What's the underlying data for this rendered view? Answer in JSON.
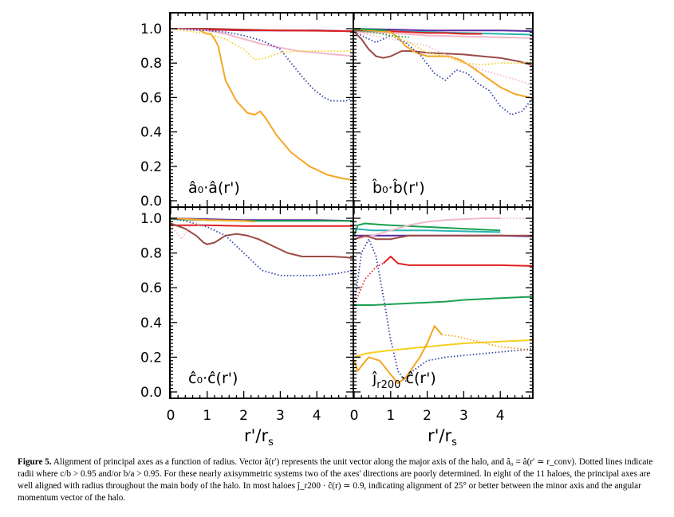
{
  "chart_data": [
    {
      "type": "line",
      "panel": "top-left",
      "label": "â₀·â(r')",
      "xlim": [
        0,
        5
      ],
      "ylim": [
        0,
        1.05
      ],
      "series": [
        {
          "color": "#f5a623",
          "style": "solid",
          "x": [
            0,
            0.5,
            0.8,
            0.9,
            1.0,
            1.1,
            1.2,
            1.3,
            1.5,
            1.8,
            2.1,
            2.3,
            2.45,
            2.6,
            2.9,
            3.3,
            3.8,
            4.3,
            4.7,
            5.0
          ],
          "y": [
            1.0,
            1.0,
            0.99,
            0.98,
            0.97,
            0.97,
            0.94,
            0.9,
            0.7,
            0.58,
            0.51,
            0.5,
            0.52,
            0.48,
            0.38,
            0.28,
            0.2,
            0.15,
            0.13,
            0.12
          ]
        },
        {
          "color": "#9b4a45",
          "style": "solid",
          "x": [
            0,
            1,
            2,
            3,
            4,
            5
          ],
          "y": [
            1.0,
            1.0,
            0.995,
            0.99,
            0.99,
            0.985
          ]
        },
        {
          "color": "#5a2aa0",
          "style": "solid",
          "x": [
            0,
            1,
            2,
            3,
            4,
            5
          ],
          "y": [
            1.0,
            0.995,
            0.99,
            0.99,
            0.99,
            0.985
          ]
        },
        {
          "color": "#e02020",
          "style": "solid",
          "x": [
            0,
            1,
            2,
            3,
            4,
            5
          ],
          "y": [
            1.0,
            0.995,
            0.992,
            0.99,
            0.988,
            0.985
          ]
        },
        {
          "color": "#f2b8c9",
          "style": "solid",
          "x": [
            0,
            1,
            1.5,
            2,
            2.5,
            3,
            3.5,
            4,
            4.5,
            5
          ],
          "y": [
            1.0,
            0.99,
            0.97,
            0.94,
            0.91,
            0.89,
            0.87,
            0.86,
            0.85,
            0.84
          ]
        },
        {
          "color": "#3344aa",
          "style": "dotted",
          "x": [
            0,
            1,
            1.5,
            2,
            2.5,
            3,
            3.3,
            3.6,
            3.9,
            4.2,
            4.4,
            4.6,
            4.8,
            5.0
          ],
          "y": [
            1.0,
            0.99,
            0.98,
            0.96,
            0.93,
            0.88,
            0.8,
            0.72,
            0.65,
            0.6,
            0.58,
            0.58,
            0.58,
            0.6
          ]
        },
        {
          "color": "#f5d020",
          "style": "dotted",
          "x": [
            0,
            1,
            1.5,
            2.0,
            2.3,
            2.6,
            3.0,
            3.5,
            4.0,
            4.5,
            5.0
          ],
          "y": [
            1.0,
            0.97,
            0.94,
            0.88,
            0.82,
            0.83,
            0.86,
            0.87,
            0.87,
            0.87,
            0.87
          ]
        }
      ]
    },
    {
      "type": "line",
      "panel": "top-right",
      "label": "b̂₀·b̂(r')",
      "xlim": [
        0,
        5
      ],
      "ylim": [
        0,
        1.05
      ],
      "series": [
        {
          "color": "#5a2aa0",
          "style": "solid",
          "x": [
            0,
            1,
            2,
            3,
            4,
            5
          ],
          "y": [
            1.0,
            0.995,
            0.99,
            0.99,
            0.99,
            0.985
          ]
        },
        {
          "color": "#28b4b4",
          "style": "solid",
          "x": [
            0,
            1,
            2,
            3,
            4,
            5
          ],
          "y": [
            0.99,
            0.985,
            0.98,
            0.975,
            0.97,
            0.965
          ]
        },
        {
          "color": "#e02020",
          "style": "solid",
          "x": [
            0,
            0.5,
            1,
            1.5,
            2,
            2.5,
            3,
            3.5
          ],
          "y": [
            0.99,
            0.99,
            0.985,
            0.98,
            0.975,
            0.975,
            0.97,
            0.97
          ]
        },
        {
          "color": "#f2b8c9",
          "style": "solid",
          "x": [
            0,
            1,
            2,
            3,
            4,
            5
          ],
          "y": [
            0.98,
            0.975,
            0.96,
            0.955,
            0.95,
            0.945
          ]
        },
        {
          "color": "#9b4a45",
          "style": "solid",
          "x": [
            0,
            0.2,
            0.4,
            0.6,
            0.8,
            1.0,
            1.3,
            1.6,
            2.0,
            2.5,
            3.0,
            3.5,
            4.0,
            4.5,
            5.0
          ],
          "y": [
            0.98,
            0.94,
            0.88,
            0.84,
            0.83,
            0.84,
            0.87,
            0.87,
            0.86,
            0.855,
            0.85,
            0.84,
            0.83,
            0.81,
            0.78
          ]
        },
        {
          "color": "#f5a623",
          "style": "solid",
          "x": [
            0,
            1.0,
            1.2,
            1.4,
            1.7,
            2.0,
            2.3,
            2.6,
            2.9,
            3.2,
            3.6,
            4.0,
            4.4,
            4.8,
            5.0
          ],
          "y": [
            1.0,
            0.98,
            0.95,
            0.9,
            0.86,
            0.84,
            0.84,
            0.84,
            0.82,
            0.78,
            0.72,
            0.66,
            0.62,
            0.6,
            0.58
          ]
        },
        {
          "color": "#3344aa",
          "style": "dotted",
          "x": [
            0,
            0.3,
            0.6,
            1.0,
            1.4,
            1.8,
            2.2,
            2.5,
            2.8,
            3.1,
            3.4,
            3.7,
            4.0,
            4.3,
            4.6,
            4.9,
            5.0
          ],
          "y": [
            0.98,
            0.95,
            0.92,
            0.96,
            0.92,
            0.85,
            0.74,
            0.7,
            0.76,
            0.74,
            0.68,
            0.64,
            0.55,
            0.5,
            0.52,
            0.6,
            0.66
          ]
        },
        {
          "color": "#f5d020",
          "style": "dotted",
          "x": [
            0,
            1,
            1.5,
            2.0,
            2.3,
            2.6,
            3.0,
            3.5,
            4.0,
            4.5,
            5.0
          ],
          "y": [
            1.0,
            0.96,
            0.92,
            0.86,
            0.85,
            0.83,
            0.8,
            0.79,
            0.8,
            0.8,
            0.81
          ]
        },
        {
          "color": "#f2b8c9",
          "style": "dotted",
          "x": [
            0,
            1,
            2,
            3,
            3.5,
            4,
            4.5,
            5.0
          ],
          "y": [
            0.98,
            0.94,
            0.9,
            0.8,
            0.76,
            0.73,
            0.7,
            0.66
          ]
        },
        {
          "color": "#1aa050",
          "style": "dotted",
          "x": [
            0,
            0.5,
            1.0,
            1.5
          ],
          "y": [
            0.99,
            0.98,
            0.96,
            0.95
          ]
        },
        {
          "color": "#1aa050",
          "style": "solid",
          "x": [
            0,
            0.5,
            0.9
          ],
          "y": [
            1.0,
            0.995,
            0.99
          ]
        }
      ]
    },
    {
      "type": "line",
      "panel": "bottom-left",
      "label": "ĉ₀·ĉ(r')",
      "xlim": [
        0,
        5
      ],
      "ylim": [
        0,
        1.05
      ],
      "series": [
        {
          "color": "#5a2aa0",
          "style": "solid",
          "x": [
            0,
            1,
            2,
            3,
            4,
            5
          ],
          "y": [
            1.0,
            0.995,
            0.99,
            0.99,
            0.99,
            0.985
          ]
        },
        {
          "color": "#1aa050",
          "style": "solid",
          "x": [
            0,
            1,
            2,
            3,
            4,
            5
          ],
          "y": [
            0.995,
            0.99,
            0.985,
            0.985,
            0.985,
            0.985
          ]
        },
        {
          "color": "#f5a623",
          "style": "solid",
          "x": [
            0,
            1,
            2,
            2.3
          ],
          "y": [
            1.0,
            0.99,
            0.985,
            0.98
          ]
        },
        {
          "color": "#e02020",
          "style": "solid",
          "x": [
            0,
            1,
            2,
            3,
            4,
            5
          ],
          "y": [
            0.96,
            0.96,
            0.955,
            0.955,
            0.955,
            0.955
          ]
        },
        {
          "color": "#9b4a45",
          "style": "solid",
          "x": [
            0,
            0.4,
            0.7,
            0.9,
            1.0,
            1.2,
            1.5,
            1.8,
            2.1,
            2.4,
            2.8,
            3.2,
            3.6,
            4.0,
            4.4,
            4.8,
            5.0
          ],
          "y": [
            0.97,
            0.94,
            0.9,
            0.86,
            0.85,
            0.86,
            0.9,
            0.91,
            0.9,
            0.88,
            0.84,
            0.8,
            0.78,
            0.78,
            0.78,
            0.775,
            0.77
          ]
        },
        {
          "color": "#3344aa",
          "style": "dotted",
          "x": [
            0,
            0.5,
            1.0,
            1.5,
            2.0,
            2.5,
            3.0,
            3.5,
            4.0,
            4.5,
            5.0
          ],
          "y": [
            1.0,
            0.98,
            0.95,
            0.9,
            0.8,
            0.7,
            0.67,
            0.67,
            0.67,
            0.68,
            0.7
          ]
        },
        {
          "color": "#f2b8c9",
          "style": "dotted",
          "x": [
            0,
            0.3,
            0.6,
            0.9
          ],
          "y": [
            0.96,
            0.88,
            0.98,
            0.95
          ]
        }
      ]
    },
    {
      "type": "line",
      "panel": "bottom-right",
      "label": "ĵr200·ĉ(r')",
      "xlim": [
        0,
        5
      ],
      "ylim": [
        0,
        1.05
      ],
      "series": [
        {
          "color": "#1aa050",
          "style": "solid",
          "x": [
            0,
            0.2,
            0.5,
            1.0,
            1.5,
            2.0,
            2.5,
            3.0,
            3.5,
            4.0,
            4.5,
            5.0
          ],
          "y": [
            0.5,
            0.5,
            0.5,
            0.505,
            0.51,
            0.515,
            0.52,
            0.53,
            0.535,
            0.54,
            0.545,
            0.55
          ]
        },
        {
          "color": "#1aa050",
          "style": "solid",
          "x": [
            0,
            0.1,
            0.3,
            0.6,
            1.0,
            2.0,
            3.0,
            4.0
          ],
          "y": [
            0.9,
            0.96,
            0.97,
            0.965,
            0.96,
            0.95,
            0.94,
            0.93
          ]
        },
        {
          "color": "#28b4b4",
          "style": "solid",
          "x": [
            0,
            0.5,
            1.0,
            2.0,
            3.0,
            4.0
          ],
          "y": [
            0.94,
            0.93,
            0.93,
            0.93,
            0.925,
            0.92
          ]
        },
        {
          "color": "#5a2aa0",
          "style": "solid",
          "x": [
            0,
            1,
            2,
            3,
            4,
            5
          ],
          "y": [
            0.9,
            0.9,
            0.9,
            0.9,
            0.9,
            0.895
          ]
        },
        {
          "color": "#f2b8c9",
          "style": "solid",
          "x": [
            0,
            0.5,
            1.0,
            1.5,
            2.0,
            2.5,
            3.0,
            3.5,
            4.0
          ],
          "y": [
            0.88,
            0.9,
            0.93,
            0.96,
            0.98,
            0.99,
            0.995,
            1.0,
            1.0
          ]
        },
        {
          "color": "#f2b8c9",
          "style": "dotted",
          "x": [
            4.0,
            4.5,
            5.0
          ],
          "y": [
            1.0,
            1.0,
            1.0
          ]
        },
        {
          "color": "#e02020",
          "style": "solid",
          "x": [
            0.8,
            0.9,
            1.0,
            1.2,
            1.5,
            2.0,
            3.0,
            4.0,
            5.0
          ],
          "y": [
            0.74,
            0.76,
            0.78,
            0.74,
            0.73,
            0.73,
            0.73,
            0.73,
            0.725
          ]
        },
        {
          "color": "#e02020",
          "style": "dotted",
          "x": [
            0,
            0.3,
            0.6,
            0.8
          ],
          "y": [
            0.5,
            0.65,
            0.72,
            0.74
          ]
        },
        {
          "color": "#9b4a45",
          "style": "solid",
          "x": [
            0,
            0.3,
            0.6,
            1.0,
            1.5,
            2.0,
            3.0,
            4.0,
            5.0
          ],
          "y": [
            0.88,
            0.9,
            0.88,
            0.88,
            0.9,
            0.9,
            0.9,
            0.9,
            0.9
          ]
        },
        {
          "color": "#3344aa",
          "style": "dotted",
          "x": [
            0,
            0.2,
            0.4,
            0.6,
            0.8,
            1.0,
            1.2,
            1.4,
            1.6,
            2.0,
            2.5,
            3.0,
            3.5,
            4.0,
            4.5,
            5.0
          ],
          "y": [
            0.5,
            0.8,
            0.88,
            0.78,
            0.55,
            0.3,
            0.12,
            0.06,
            0.12,
            0.18,
            0.2,
            0.21,
            0.22,
            0.23,
            0.24,
            0.25
          ]
        },
        {
          "color": "#f5d020",
          "style": "solid",
          "x": [
            0,
            0.3,
            0.6,
            1.0,
            1.5,
            2.0,
            2.5,
            3.0,
            3.5,
            4.0,
            4.5,
            5.0
          ],
          "y": [
            0.2,
            0.22,
            0.23,
            0.24,
            0.25,
            0.26,
            0.27,
            0.28,
            0.285,
            0.29,
            0.295,
            0.3
          ]
        },
        {
          "color": "#f5a623",
          "style": "solid",
          "x": [
            0,
            0.1,
            0.2,
            0.4,
            0.7,
            1.0,
            1.2,
            1.4,
            1.6,
            1.8,
            2.0,
            2.2,
            2.4
          ],
          "y": [
            0.18,
            0.12,
            0.15,
            0.2,
            0.18,
            0.1,
            0.05,
            0.08,
            0.14,
            0.2,
            0.28,
            0.38,
            0.33
          ]
        },
        {
          "color": "#f5a623",
          "style": "dotted",
          "x": [
            2.4,
            2.8,
            3.2,
            3.6,
            4.0,
            4.5,
            5.0
          ],
          "y": [
            0.33,
            0.32,
            0.3,
            0.28,
            0.26,
            0.25,
            0.23
          ]
        }
      ]
    }
  ],
  "axes": {
    "y_tick_labels": [
      "0.0",
      "0.2",
      "0.4",
      "0.6",
      "0.8",
      "1.0"
    ],
    "x_tick_labels": [
      "0",
      "1",
      "2",
      "3",
      "4"
    ],
    "x_title_main": "r'/r",
    "x_title_sub": "s"
  },
  "panel_labels": {
    "top_left": "â₀·â(r')",
    "top_right": "b̂₀·b̂(r')",
    "bottom_left": "ĉ₀·ĉ(r')",
    "bottom_right": "ĵ",
    "bottom_right_sub": "r200",
    "bottom_right_rest": "·ĉ(r')"
  },
  "caption": {
    "figure_label": "Figure 5.",
    "text": "Alignment of principal axes as a function of radius. Vector â(r′) represents the unit vector along the major axis of the halo, and â₀ = â(r′ ≃ r_conv). Dotted lines indicate radii where c/b > 0.95 and/or b/a > 0.95. For these nearly axisymmetric systems two of the axes' directions are poorly determined. In eight of the 11 haloes, the principal axes are well aligned with radius throughout the main body of the halo. In most haloes ĵ_r200 · ĉ(r) ≃ 0.9, indicating alignment of 25° or better between the minor axis and the angular momentum vector of the halo."
  }
}
